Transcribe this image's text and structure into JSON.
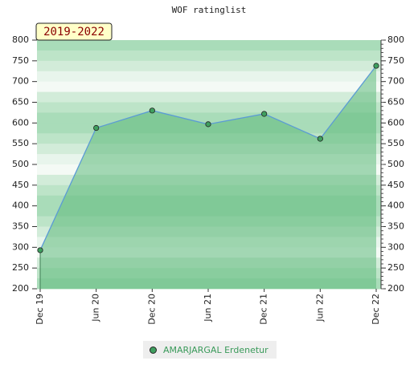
{
  "chart_data": {
    "type": "area",
    "title": "WOF ratinglist",
    "annotation": "2019-2022",
    "categories": [
      "Dec 19",
      "Jun 20",
      "Dec 20",
      "Jun 21",
      "Dec 21",
      "Jun 22",
      "Dec 22"
    ],
    "series": [
      {
        "name": "AMARJARGAL Erdenetur",
        "color": "#3f9f5f",
        "values": [
          293,
          588,
          630,
          597,
          622,
          562,
          738
        ]
      }
    ],
    "ylim": [
      200,
      800
    ],
    "yticks": [
      200,
      250,
      300,
      350,
      400,
      450,
      500,
      550,
      600,
      650,
      700,
      750,
      800
    ]
  }
}
